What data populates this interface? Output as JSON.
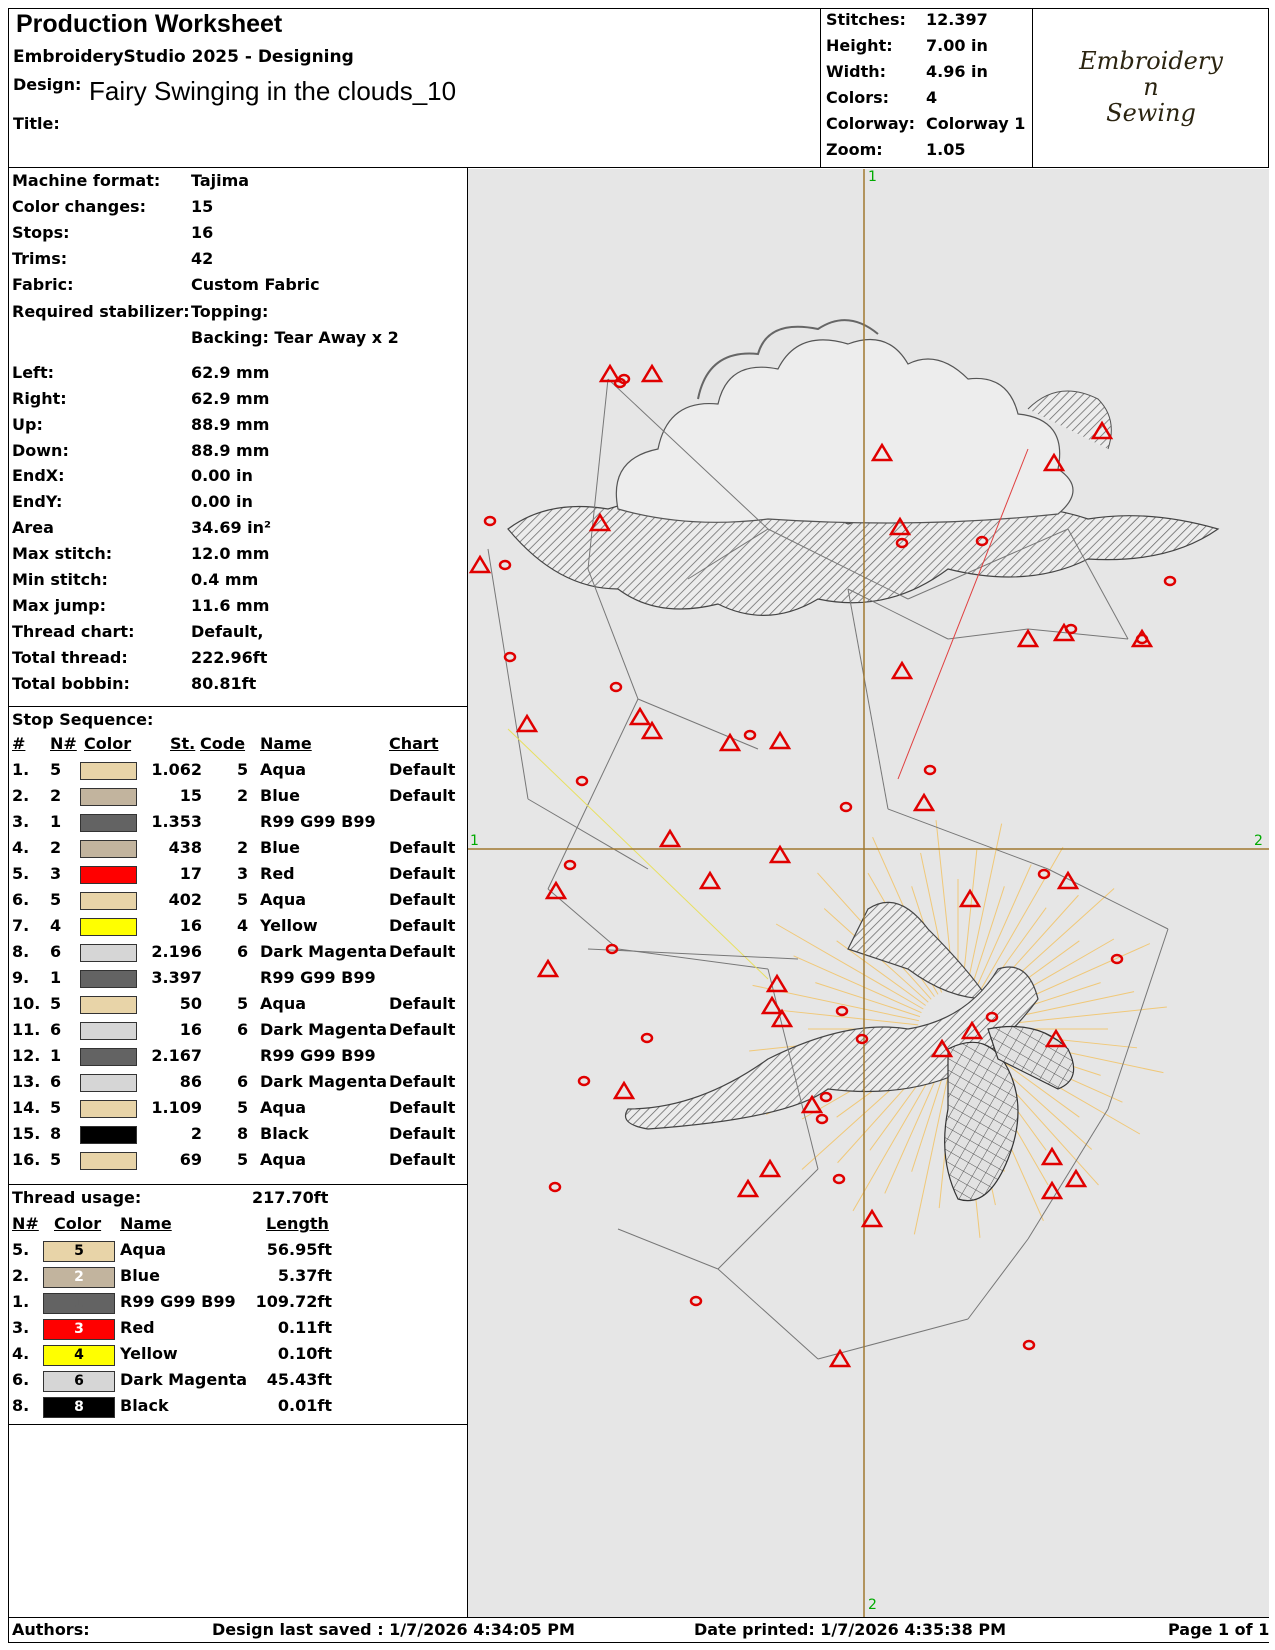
{
  "header": {
    "title": "Production Worksheet",
    "software": "EmbroideryStudio 2025 - Designing",
    "design_label": "Design:",
    "design_name": "Fairy Swinging in the clouds_10",
    "title_label": "Title:"
  },
  "stats": [
    {
      "label": "Stitches:",
      "value": "12.397"
    },
    {
      "label": "Height:",
      "value": "7.00 in"
    },
    {
      "label": "Width:",
      "value": "4.96 in"
    },
    {
      "label": "Colors:",
      "value": "4"
    },
    {
      "label": "Colorway:",
      "value": "Colorway 1"
    },
    {
      "label": "Zoom:",
      "value": "1.05"
    }
  ],
  "logo": {
    "line1": "Embroidery",
    "line2": "n",
    "line3": "Sewing"
  },
  "info": [
    {
      "label": "Machine format:",
      "value": "Tajima"
    },
    {
      "label": "Color changes:",
      "value": "15"
    },
    {
      "label": "Stops:",
      "value": "16"
    },
    {
      "label": "Trims:",
      "value": "42"
    },
    {
      "label": "Fabric:",
      "value": "Custom Fabric"
    },
    {
      "label": "Required stabilizer:",
      "value": "Topping:"
    },
    {
      "label": "",
      "value": "Backing: Tear Away x 2"
    },
    {
      "label": "Left:",
      "value": "62.9 mm"
    },
    {
      "label": "Right:",
      "value": "62.9 mm"
    },
    {
      "label": "Up:",
      "value": "88.9 mm"
    },
    {
      "label": "Down:",
      "value": "88.9 mm"
    },
    {
      "label": "EndX:",
      "value": "0.00 in"
    },
    {
      "label": "EndY:",
      "value": "0.00 in"
    },
    {
      "label": "Area",
      "value": " 34.69 in²"
    },
    {
      "label": "Max stitch:",
      "value": "12.0 mm"
    },
    {
      "label": "Min stitch:",
      "value": "0.4 mm"
    },
    {
      "label": "Max jump:",
      "value": "11.6 mm"
    },
    {
      "label": "Thread chart:",
      "value": "Default,"
    },
    {
      "label": "Total thread:",
      "value": "222.96ft"
    },
    {
      "label": "Total bobbin:",
      "value": "80.81ft"
    }
  ],
  "stop_sequence": {
    "title": "Stop Sequence:",
    "headers": {
      "idx": "#",
      "n": "N#",
      "color": "Color",
      "st": "St.",
      "code": "Code",
      "name": "Name",
      "chart": "Chart"
    },
    "rows": [
      {
        "idx": "1.",
        "n": "5",
        "color": "#e8d4a8",
        "st": "1.062",
        "code": "5",
        "name": "Aqua",
        "chart": "Default"
      },
      {
        "idx": "2.",
        "n": "2",
        "color": "#c2b49e",
        "st": "15",
        "code": "2",
        "name": "Blue",
        "chart": "Default"
      },
      {
        "idx": "3.",
        "n": "1",
        "color": "#636363",
        "st": "1.353",
        "code": "",
        "name": "R99 G99 B99",
        "chart": ""
      },
      {
        "idx": "4.",
        "n": "2",
        "color": "#c2b49e",
        "st": "438",
        "code": "2",
        "name": "Blue",
        "chart": "Default"
      },
      {
        "idx": "5.",
        "n": "3",
        "color": "#ff0000",
        "st": "17",
        "code": "3",
        "name": "Red",
        "chart": "Default"
      },
      {
        "idx": "6.",
        "n": "5",
        "color": "#e8d4a8",
        "st": "402",
        "code": "5",
        "name": "Aqua",
        "chart": "Default"
      },
      {
        "idx": "7.",
        "n": "4",
        "color": "#ffff00",
        "st": "16",
        "code": "4",
        "name": "Yellow",
        "chart": "Default"
      },
      {
        "idx": "8.",
        "n": "6",
        "color": "#d6d6d6",
        "st": "2.196",
        "code": "6",
        "name": "Dark Magenta",
        "chart": "Default"
      },
      {
        "idx": "9.",
        "n": "1",
        "color": "#636363",
        "st": "3.397",
        "code": "",
        "name": "R99 G99 B99",
        "chart": ""
      },
      {
        "idx": "10.",
        "n": "5",
        "color": "#e8d4a8",
        "st": "50",
        "code": "5",
        "name": "Aqua",
        "chart": "Default"
      },
      {
        "idx": "11.",
        "n": "6",
        "color": "#d6d6d6",
        "st": "16",
        "code": "6",
        "name": "Dark Magenta",
        "chart": "Default"
      },
      {
        "idx": "12.",
        "n": "1",
        "color": "#636363",
        "st": "2.167",
        "code": "",
        "name": "R99 G99 B99",
        "chart": ""
      },
      {
        "idx": "13.",
        "n": "6",
        "color": "#d6d6d6",
        "st": "86",
        "code": "6",
        "name": "Dark Magenta",
        "chart": "Default"
      },
      {
        "idx": "14.",
        "n": "5",
        "color": "#e8d4a8",
        "st": "1.109",
        "code": "5",
        "name": "Aqua",
        "chart": "Default"
      },
      {
        "idx": "15.",
        "n": "8",
        "color": "#000000",
        "st": "2",
        "code": "8",
        "name": "Black",
        "chart": "Default"
      },
      {
        "idx": "16.",
        "n": "5",
        "color": "#e8d4a8",
        "st": "69",
        "code": "5",
        "name": "Aqua",
        "chart": "Default"
      }
    ]
  },
  "thread_usage": {
    "title": "Thread usage:",
    "total": "217.70ft",
    "headers": {
      "n": "N#",
      "color": "Color",
      "name": "Name",
      "length": "Length"
    },
    "rows": [
      {
        "n": "5.",
        "label": "5",
        "color": "#e8d4a8",
        "text": "#000000",
        "name": "Aqua",
        "length": "56.95ft"
      },
      {
        "n": "2.",
        "label": "2",
        "color": "#c2b49e",
        "text": "#ffffff",
        "name": "Blue",
        "length": "5.37ft"
      },
      {
        "n": "1.",
        "label": "1",
        "color": "#636363",
        "text": "#636363",
        "name": "R99 G99 B99",
        "length": "109.72ft"
      },
      {
        "n": "3.",
        "label": "3",
        "color": "#ff0000",
        "text": "#ffffff",
        "name": "Red",
        "length": "0.11ft"
      },
      {
        "n": "4.",
        "label": "4",
        "color": "#ffff00",
        "text": "#000000",
        "name": "Yellow",
        "length": "0.10ft"
      },
      {
        "n": "6.",
        "label": "6",
        "color": "#d6d6d6",
        "text": "#000000",
        "name": "Dark Magenta",
        "length": "45.43ft"
      },
      {
        "n": "8.",
        "label": "8",
        "color": "#000000",
        "text": "#ffffff",
        "name": "Black",
        "length": "0.01ft"
      }
    ]
  },
  "canvas": {
    "axis_top": "1",
    "axis_bottom": "2",
    "axis_left": "1",
    "axis_right": "2",
    "axis_color": "#a07830",
    "marker_color": "#e00000",
    "label_color": "#00aa00"
  },
  "footer": {
    "authors": "Authors:",
    "saved": "Design last saved : 1/7/2026 4:34:05 PM",
    "printed": "Date printed: 1/7/2026 4:35:38 PM",
    "page": "Page 1 of 1"
  }
}
